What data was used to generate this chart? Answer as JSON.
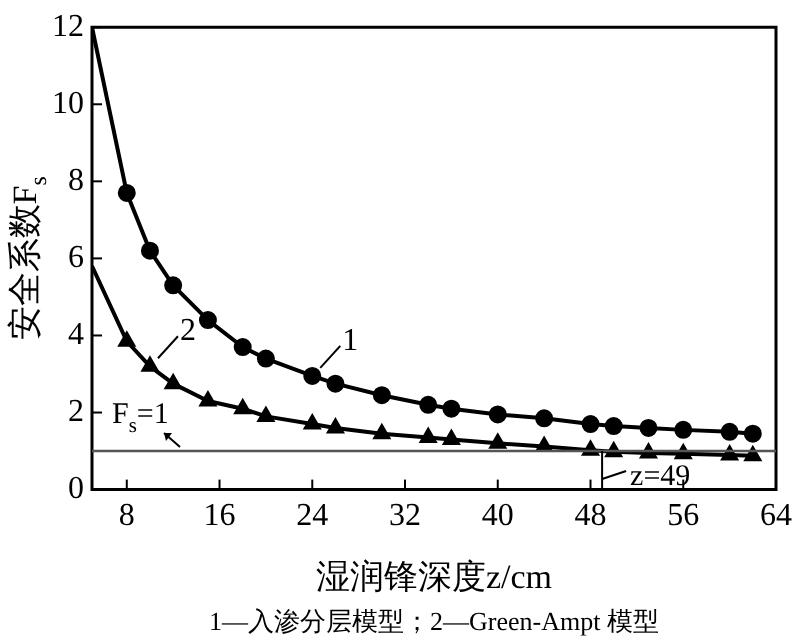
{
  "chart_data": {
    "type": "line",
    "xlabel": "湿润锋深度z/cm",
    "ylabel": "安全系数F$_{s}$",
    "xlim": [
      5,
      64
    ],
    "xticks": [
      8,
      16,
      24,
      32,
      40,
      48,
      56,
      64
    ],
    "ylim": [
      0,
      12
    ],
    "yticks": [
      0,
      2,
      4,
      6,
      8,
      10,
      12
    ],
    "grid": false,
    "legend": "left",
    "line_style": "solid",
    "series": [
      {
        "name": "1",
        "color": "#000000",
        "marker": "circle",
        "x": [
          5,
          8,
          10,
          12,
          15,
          18,
          20,
          24,
          26,
          30,
          34,
          36,
          40,
          44,
          48,
          50,
          53,
          56,
          60,
          62
        ],
        "values": [
          12,
          7.7,
          6.2,
          5.3,
          4.4,
          3.7,
          3.4,
          2.95,
          2.75,
          2.45,
          2.2,
          2.1,
          1.95,
          1.85,
          1.7,
          1.65,
          1.6,
          1.55,
          1.5,
          1.45
        ]
      },
      {
        "name": "2",
        "color": "#000000",
        "marker": "triangle",
        "x": [
          5,
          8,
          10,
          12,
          15,
          18,
          20,
          24,
          26,
          30,
          34,
          36,
          40,
          44,
          48,
          50,
          53,
          56,
          60,
          62
        ],
        "values": [
          5.8,
          3.85,
          3.2,
          2.75,
          2.3,
          2.1,
          1.9,
          1.7,
          1.6,
          1.45,
          1.35,
          1.3,
          1.2,
          1.12,
          1.02,
          0.98,
          0.95,
          0.93,
          0.9,
          0.88
        ]
      }
    ],
    "ref_lines": [
      {
        "axis": "y",
        "value": 1,
        "label": "F$_{s}$=1",
        "color": "#555555"
      }
    ],
    "annotations": [
      {
        "text": "z=49",
        "x": 49,
        "y": 1
      },
      "1—入渗分层模型；2—Green-Ampt 模型"
    ]
  }
}
